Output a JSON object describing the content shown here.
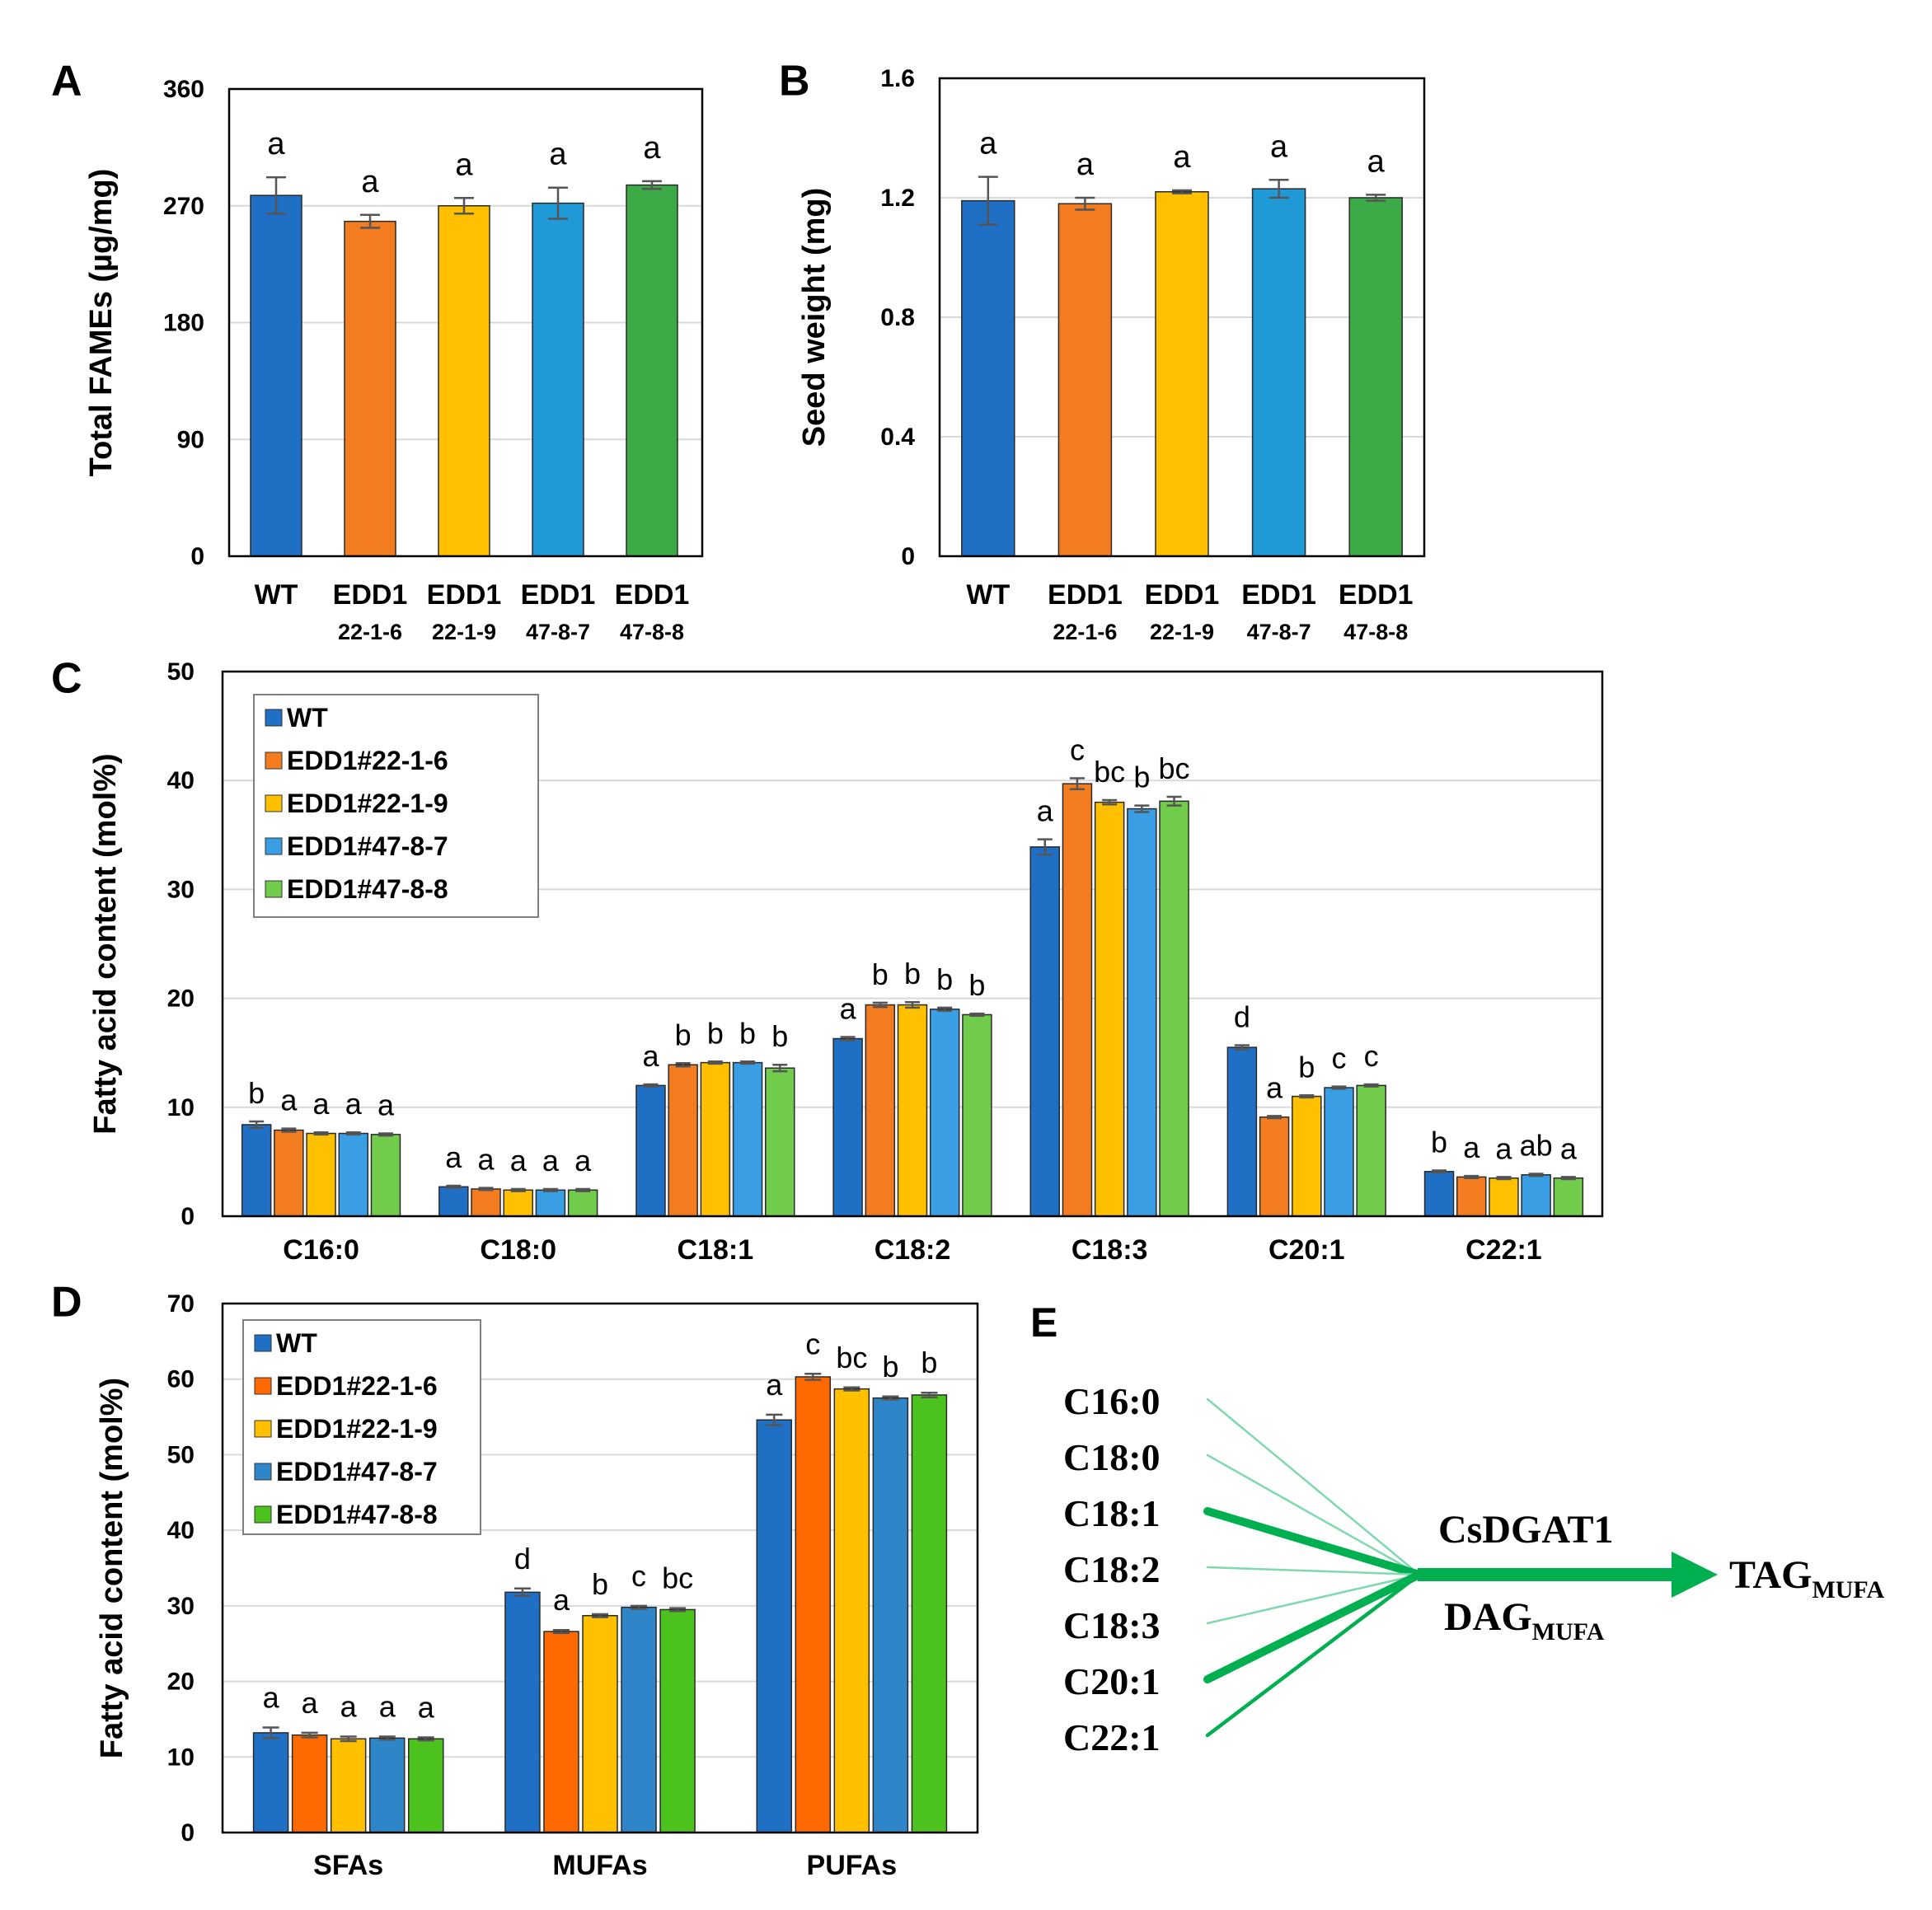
{
  "chart_data": [
    {
      "id": "A",
      "type": "bar",
      "panel_label": "A",
      "ylabel": "Total FAMEs (µg/mg)",
      "ylim": [
        0,
        360
      ],
      "yticks": [
        0,
        90,
        180,
        270,
        360
      ],
      "ytick_labels": [
        "0",
        "90",
        "180",
        "270",
        "360"
      ],
      "categories": [
        "WT",
        "EDD1",
        "EDD1",
        "EDD1",
        "EDD1"
      ],
      "sublabels": [
        "",
        "22-1-6",
        "22-1-9",
        "47-8-7",
        "47-8-8"
      ],
      "values": [
        278,
        258,
        270,
        272,
        286
      ],
      "errors": [
        14,
        5,
        6,
        12,
        3
      ],
      "sig_labels": [
        "a",
        "a",
        "a",
        "a",
        "a"
      ],
      "colors": [
        "#1f6fc5",
        "#f47c20",
        "#ffc000",
        "#1f9ad6",
        "#3daa48"
      ],
      "grid": true
    },
    {
      "id": "B",
      "type": "bar",
      "panel_label": "B",
      "ylabel": "Seed weight (mg)",
      "ylim": [
        0,
        1.6
      ],
      "yticks": [
        0,
        0.4,
        0.8,
        1.2,
        1.6
      ],
      "ytick_labels": [
        "0",
        "0.4",
        "0.8",
        "1.2",
        "1.6"
      ],
      "categories": [
        "WT",
        "EDD1",
        "EDD1",
        "EDD1",
        "EDD1"
      ],
      "sublabels": [
        "",
        "22-1-6",
        "22-1-9",
        "47-8-7",
        "47-8-8"
      ],
      "values": [
        1.19,
        1.18,
        1.22,
        1.23,
        1.2
      ],
      "errors": [
        0.08,
        0.02,
        0.005,
        0.03,
        0.01
      ],
      "sig_labels": [
        "a",
        "a",
        "a",
        "a",
        "a"
      ],
      "colors": [
        "#1f6fc5",
        "#f47c20",
        "#ffc000",
        "#1f9ad6",
        "#3daa48"
      ],
      "grid": true
    },
    {
      "id": "C",
      "type": "bar",
      "panel_label": "C",
      "ylabel": "Fatty acid content (mol%)",
      "ylim": [
        0,
        50
      ],
      "yticks": [
        0,
        10,
        20,
        30,
        40,
        50
      ],
      "ytick_labels": [
        "0",
        "10",
        "20",
        "30",
        "40",
        "50"
      ],
      "categories": [
        "C16:0",
        "C18:0",
        "C18:1",
        "C18:2",
        "C18:3",
        "C20:1",
        "C22:1"
      ],
      "series": [
        {
          "name": "WT",
          "color": "#1f6fc5",
          "values": [
            8.4,
            2.7,
            12.0,
            16.3,
            33.9,
            15.5,
            4.1
          ],
          "errors": [
            0.3,
            0.1,
            0.1,
            0.15,
            0.7,
            0.2,
            0.1
          ]
        },
        {
          "name": "EDD1#22-1-6",
          "color": "#f47c20",
          "values": [
            7.9,
            2.5,
            13.9,
            19.4,
            39.7,
            9.1,
            3.6
          ],
          "errors": [
            0.15,
            0.1,
            0.15,
            0.2,
            0.5,
            0.1,
            0.1
          ]
        },
        {
          "name": "EDD1#22-1-9",
          "color": "#ffc000",
          "values": [
            7.6,
            2.4,
            14.1,
            19.4,
            38.0,
            11.0,
            3.5
          ],
          "errors": [
            0.1,
            0.1,
            0.1,
            0.25,
            0.2,
            0.1,
            0.1
          ]
        },
        {
          "name": "EDD1#47-8-7",
          "color": "#3a9ee4",
          "values": [
            7.6,
            2.4,
            14.1,
            19.0,
            37.4,
            11.8,
            3.8
          ],
          "errors": [
            0.1,
            0.1,
            0.1,
            0.15,
            0.3,
            0.1,
            0.1
          ]
        },
        {
          "name": "EDD1#47-8-8",
          "color": "#70cc4a",
          "values": [
            7.5,
            2.4,
            13.6,
            18.5,
            38.1,
            12.0,
            3.5
          ],
          "errors": [
            0.1,
            0.1,
            0.3,
            0.1,
            0.4,
            0.1,
            0.1
          ]
        }
      ],
      "sig_labels": [
        [
          "b",
          "a",
          "a",
          "a",
          "a"
        ],
        [
          "a",
          "a",
          "a",
          "a",
          "a"
        ],
        [
          "a",
          "b",
          "b",
          "b",
          "b"
        ],
        [
          "a",
          "b",
          "b",
          "b",
          "b"
        ],
        [
          "a",
          "c",
          "bc",
          "b",
          "bc"
        ],
        [
          "d",
          "a",
          "b",
          "c",
          "c"
        ],
        [
          "b",
          "a",
          "a",
          "ab",
          "a"
        ]
      ],
      "legend": "top-left",
      "grid": true
    },
    {
      "id": "D",
      "type": "bar",
      "panel_label": "D",
      "ylabel": "Fatty acid content (mol%)",
      "ylim": [
        0,
        70
      ],
      "yticks": [
        0,
        10,
        20,
        30,
        40,
        50,
        60,
        70
      ],
      "ytick_labels": [
        "0",
        "10",
        "20",
        "30",
        "40",
        "50",
        "60",
        "70"
      ],
      "categories": [
        "SFAs",
        "MUFAs",
        "PUFAs"
      ],
      "series": [
        {
          "name": "WT",
          "color": "#1f6fc5",
          "values": [
            13.2,
            31.8,
            54.6
          ],
          "errors": [
            0.7,
            0.5,
            0.7
          ]
        },
        {
          "name": "EDD1#22-1-6",
          "color": "#ff6a00",
          "values": [
            12.9,
            26.6,
            60.3
          ],
          "errors": [
            0.3,
            0.2,
            0.4
          ]
        },
        {
          "name": "EDD1#22-1-9",
          "color": "#ffc000",
          "values": [
            12.4,
            28.7,
            58.7
          ],
          "errors": [
            0.3,
            0.2,
            0.2
          ]
        },
        {
          "name": "EDD1#47-8-7",
          "color": "#2e86c8",
          "values": [
            12.5,
            29.8,
            57.5
          ],
          "errors": [
            0.2,
            0.2,
            0.2
          ]
        },
        {
          "name": "EDD1#47-8-8",
          "color": "#4cc21e",
          "values": [
            12.4,
            29.5,
            57.9
          ],
          "errors": [
            0.2,
            0.2,
            0.3
          ]
        }
      ],
      "sig_labels": [
        [
          "a",
          "a",
          "a",
          "a",
          "a"
        ],
        [
          "d",
          "a",
          "b",
          "c",
          "bc"
        ],
        [
          "a",
          "c",
          "bc",
          "b",
          "b"
        ]
      ],
      "legend": "top-left",
      "grid": true
    }
  ],
  "diagram_e": {
    "panel_label": "E",
    "inputs": [
      "C16:0",
      "C18:0",
      "C18:1",
      "C18:2",
      "C18:3",
      "C20:1",
      "C22:1"
    ],
    "emphasized_inputs": [
      "C18:1",
      "C20:1"
    ],
    "enzyme": "CsDGAT1",
    "substrate": "DAG",
    "substrate_subscript": "MUFA",
    "product": "TAG",
    "product_subscript": "MUFA",
    "line_color": "#00b050",
    "thin_line_color": "#7fd8ae"
  }
}
